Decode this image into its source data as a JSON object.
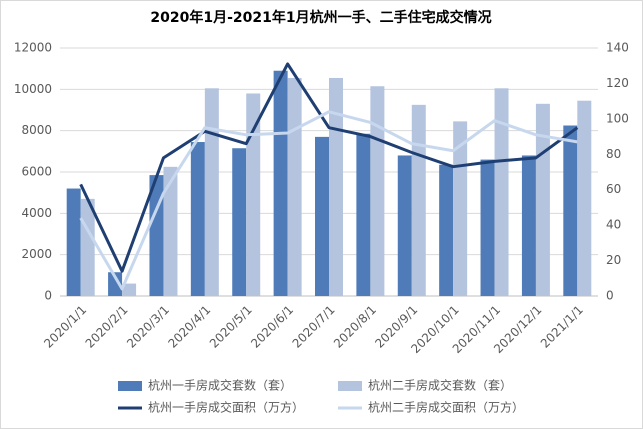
{
  "chart_data": {
    "type": "combo",
    "title": "2020年1月-2021年1月杭州一手、二手住宅成交情况",
    "categories": [
      "2020/1/1",
      "2020/2/1",
      "2020/3/1",
      "2020/4/1",
      "2020/5/1",
      "2020/6/1",
      "2020/7/1",
      "2020/8/1",
      "2020/9/1",
      "2020/10/1",
      "2020/11/1",
      "2020/12/1",
      "2021/1/1"
    ],
    "series": [
      {
        "name": "杭州一手房成交套数（套）",
        "type": "bar",
        "color": "#4f7cb8",
        "values": [
          5200,
          1150,
          5850,
          7450,
          7150,
          10900,
          7700,
          7850,
          6800,
          6350,
          6600,
          6800,
          8250
        ]
      },
      {
        "name": "杭州二手房成交套数（套）",
        "type": "bar",
        "color": "#b4c4df",
        "values": [
          4700,
          600,
          6250,
          10050,
          9800,
          10550,
          10550,
          10150,
          9250,
          8450,
          10050,
          9300,
          9450
        ]
      },
      {
        "name": "杭州一手房成交面积（万方）",
        "type": "line",
        "axis": "y2",
        "color": "#1f3f73",
        "values": [
          63,
          14,
          78,
          93,
          86,
          131,
          95,
          90,
          81,
          73,
          76,
          78,
          95
        ]
      },
      {
        "name": "杭州二手房成交面积（万方）",
        "type": "line",
        "axis": "y2",
        "color": "#c7d8ee",
        "values": [
          44,
          4,
          58,
          95,
          91,
          92,
          104,
          98,
          86,
          82,
          99,
          91,
          87
        ]
      }
    ],
    "ylim": [
      0,
      12000
    ],
    "yticks": [
      0,
      2000,
      4000,
      6000,
      8000,
      10000,
      12000
    ],
    "y2lim": [
      0,
      140
    ],
    "y2ticks": [
      0,
      20,
      40,
      60,
      80,
      100,
      120,
      140
    ],
    "grid": true
  }
}
